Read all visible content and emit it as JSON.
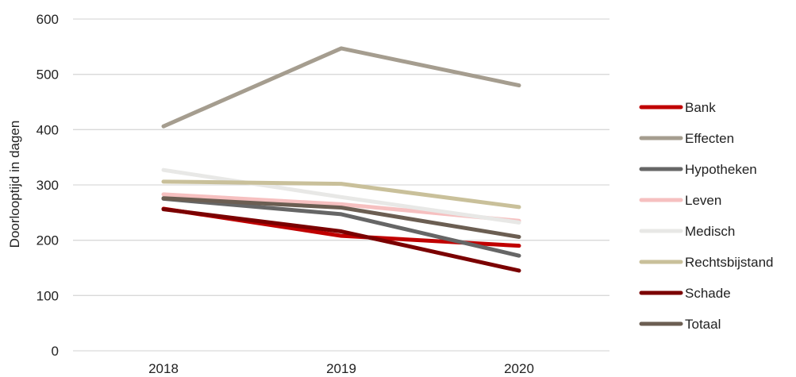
{
  "chart_data": {
    "type": "line",
    "title": "",
    "xlabel": "",
    "ylabel": "Doorlooptijd in dagen",
    "categories": [
      "2018",
      "2019",
      "2020"
    ],
    "ylim": [
      0,
      600
    ],
    "yticks": [
      "0",
      "100",
      "200",
      "300",
      "400",
      "500",
      "600"
    ],
    "grid": true,
    "legend_position": "right",
    "series": [
      {
        "name": "Bank",
        "color": "#c00000",
        "values": [
          257,
          208,
          190
        ]
      },
      {
        "name": "Effecten",
        "color": "#a59d8f",
        "values": [
          406,
          547,
          480
        ]
      },
      {
        "name": "Hypotheken",
        "color": "#666666",
        "values": [
          275,
          247,
          172
        ]
      },
      {
        "name": "Leven",
        "color": "#f6c0c0",
        "values": [
          283,
          265,
          235
        ]
      },
      {
        "name": "Medisch",
        "color": "#e8e8e6",
        "values": [
          327,
          278,
          232
        ]
      },
      {
        "name": "Rechtsbijstand",
        "color": "#c9c09a",
        "values": [
          306,
          302,
          260
        ]
      },
      {
        "name": "Schade",
        "color": "#7b0000",
        "values": [
          256,
          216,
          145
        ]
      },
      {
        "name": "Totaal",
        "color": "#6b5e52",
        "values": [
          276,
          259,
          206
        ]
      }
    ]
  }
}
